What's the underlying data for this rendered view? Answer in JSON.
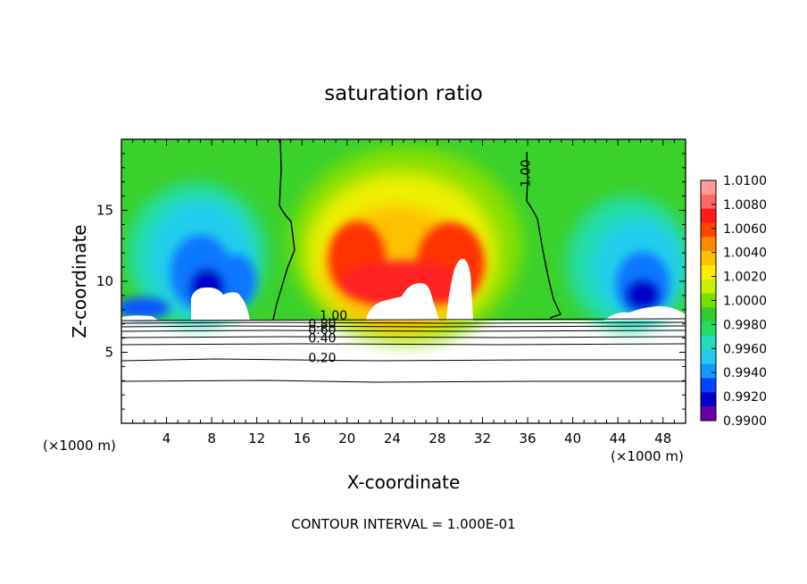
{
  "chart_data": {
    "type": "heatmap",
    "title": "saturation ratio",
    "xlabel": "X-coordinate",
    "ylabel": "Z-coordinate",
    "x_unit": "(×1000 m)",
    "x_unit_right": "(×1000 m)",
    "footer": "CONTOUR INTERVAL = 1.000E-01",
    "xlim": [
      0,
      50
    ],
    "ylim": [
      0,
      20
    ],
    "x_ticks": [
      "4",
      "8",
      "12",
      "16",
      "20",
      "24",
      "28",
      "32",
      "36",
      "40",
      "44",
      "48"
    ],
    "y_ticks": [
      "5",
      "10",
      "15"
    ],
    "colorbar": {
      "labels": [
        "1.0100",
        "1.0080",
        "1.0060",
        "1.0040",
        "1.0020",
        "1.0000",
        "0.9980",
        "0.9960",
        "0.9940",
        "0.9920",
        "0.9900"
      ],
      "colors": [
        "#ff9a9a",
        "#ff6666",
        "#ff1a1a",
        "#ff4400",
        "#ff8800",
        "#ffc000",
        "#ffee00",
        "#c8f000",
        "#78e000",
        "#33cc33",
        "#22dd66",
        "#22ddbb",
        "#22ccee",
        "#1199ff",
        "#0044ff",
        "#0000cc",
        "#6600aa"
      ]
    },
    "contour_labels": [
      {
        "text": "1.00",
        "x": 36.2,
        "y": 17.6
      },
      {
        "text": "1.00",
        "x": 18.8,
        "y": 7.3
      },
      {
        "text": "0.80",
        "x": 17.8,
        "y": 6.7
      },
      {
        "text": "0.60",
        "x": 17.8,
        "y": 6.3
      },
      {
        "text": "0.40",
        "x": 17.8,
        "y": 5.7
      },
      {
        "text": "0.20",
        "x": 17.8,
        "y": 4.3
      }
    ],
    "colors": {
      "background": "#ffffff",
      "field_base": "#3bd12b",
      "text": "#000000"
    }
  }
}
